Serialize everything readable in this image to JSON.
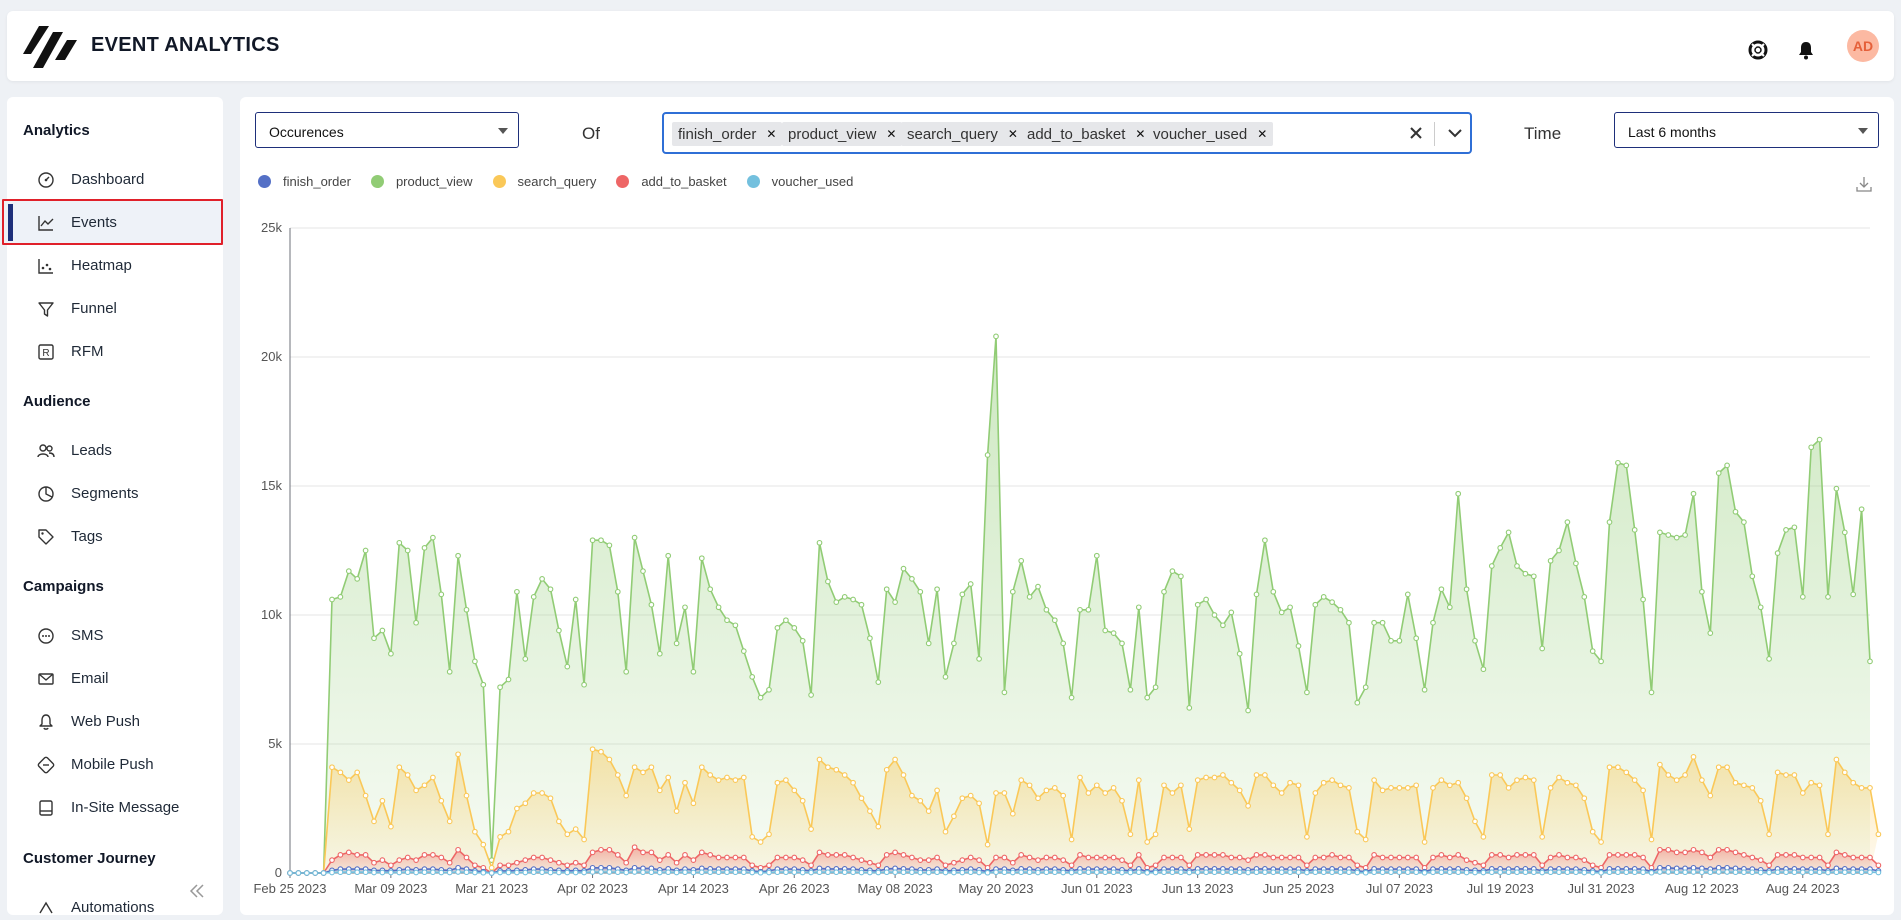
{
  "header": {
    "title": "EVENT ANALYTICS",
    "avatar_initials": "AD",
    "icons": [
      "support-icon",
      "bell-icon"
    ]
  },
  "sidebar": {
    "sections": [
      {
        "title": "Analytics",
        "items": [
          {
            "label": "Dashboard",
            "icon": "gauge-icon"
          },
          {
            "label": "Events",
            "icon": "line-chart-icon",
            "active": true
          },
          {
            "label": "Heatmap",
            "icon": "heatmap-icon"
          },
          {
            "label": "Funnel",
            "icon": "funnel-icon"
          },
          {
            "label": "RFM",
            "icon": "rfm-icon"
          }
        ]
      },
      {
        "title": "Audience",
        "items": [
          {
            "label": "Leads",
            "icon": "users-icon"
          },
          {
            "label": "Segments",
            "icon": "pie-icon"
          },
          {
            "label": "Tags",
            "icon": "tag-icon"
          }
        ]
      },
      {
        "title": "Campaigns",
        "items": [
          {
            "label": "SMS",
            "icon": "chat-icon"
          },
          {
            "label": "Email",
            "icon": "mail-icon"
          },
          {
            "label": "Web Push",
            "icon": "bell-icon"
          },
          {
            "label": "Mobile Push",
            "icon": "mobile-push-icon"
          },
          {
            "label": "In-Site Message",
            "icon": "message-box-icon"
          }
        ]
      },
      {
        "title": "Customer Journey",
        "items": [
          {
            "label": "Automations",
            "icon": "automation-icon"
          }
        ]
      }
    ]
  },
  "filters": {
    "metric": "Occurences",
    "of_label": "Of",
    "events": [
      "finish_order",
      "product_view",
      "search_query",
      "add_to_basket",
      "voucher_used"
    ],
    "time_label": "Time",
    "time_range": "Last 6 months"
  },
  "colors": {
    "finish_order": "#5470c6",
    "product_view": "#91cc75",
    "search_query": "#fac858",
    "add_to_basket": "#ee6666",
    "voucher_used": "#73c0de",
    "accent": "#1e2f7a",
    "highlight": "#e0202a"
  },
  "chart_data": {
    "type": "area",
    "x_start": "Feb 25 2023",
    "x_tick_labels": [
      "Feb 25 2023",
      "Mar 09 2023",
      "Mar 21 2023",
      "Apr 02 2023",
      "Apr 14 2023",
      "Apr 26 2023",
      "May 08 2023",
      "May 20 2023",
      "Jun 01 2023",
      "Jun 13 2023",
      "Jun 25 2023",
      "Jul 07 2023",
      "Jul 19 2023",
      "Jul 31 2023",
      "Aug 12 2023",
      "Aug 24 2023"
    ],
    "y_tick_labels": [
      "0",
      "5k",
      "10k",
      "15k",
      "20k",
      "25k"
    ],
    "ylim": [
      0,
      25000
    ],
    "legend_position": "top-left",
    "grid": true,
    "series": [
      {
        "name": "product_view",
        "values": [
          0,
          0,
          0,
          0,
          0,
          10600,
          10700,
          11700,
          11400,
          12500,
          9100,
          9400,
          8500,
          12800,
          12500,
          9700,
          12600,
          13000,
          10800,
          7800,
          12300,
          10200,
          8200,
          7300,
          500,
          7200,
          7500,
          10900,
          8300,
          10700,
          11400,
          11000,
          9400,
          8000,
          10600,
          7300,
          12900,
          12900,
          12700,
          10900,
          7800,
          13000,
          11700,
          10400,
          8500,
          12300,
          8900,
          10300,
          7800,
          12200,
          11000,
          10300,
          9800,
          9600,
          8600,
          7600,
          6800,
          7100,
          9500,
          9800,
          9500,
          9000,
          6900,
          12800,
          11300,
          10500,
          10700,
          10600,
          10400,
          9100,
          7400,
          11000,
          10500,
          11800,
          11400,
          10900,
          8900,
          11000,
          7600,
          8900,
          10800,
          11200,
          8300,
          16200,
          20800,
          7000,
          10900,
          12100,
          10700,
          11100,
          10200,
          9800,
          8900,
          6800,
          10200,
          10200,
          12300,
          9400,
          9300,
          8900,
          7100,
          10300,
          6800,
          7200,
          10900,
          11700,
          11500,
          6400,
          10400,
          10600,
          10000,
          9600,
          10100,
          8500,
          6300,
          10800,
          12900,
          10900,
          10100,
          10300,
          8800,
          7000,
          10400,
          10700,
          10500,
          10200,
          9700,
          6600,
          7200,
          9700,
          9700,
          9000,
          9000,
          10800,
          9100,
          7100,
          9700,
          11000,
          10300,
          14700,
          11000,
          9000,
          7900,
          11900,
          12600,
          13200,
          11900,
          11600,
          11500,
          8700,
          12100,
          12500,
          13600,
          12000,
          10700,
          8600,
          8200,
          13600,
          15900,
          15800,
          13300,
          10600,
          7000,
          13200,
          13100,
          13000,
          13100,
          14700,
          10900,
          9300,
          15500,
          15800,
          14000,
          13600,
          11500,
          10300,
          8300,
          12400,
          13300,
          13400,
          10700,
          16500,
          16800,
          10700,
          14900,
          13200,
          10800,
          14100,
          8200
        ]
      },
      {
        "name": "search_query",
        "values": [
          0,
          0,
          0,
          0,
          0,
          4100,
          3900,
          3600,
          3900,
          3000,
          2000,
          2800,
          1800,
          4100,
          3800,
          3200,
          3400,
          3700,
          2800,
          2000,
          4600,
          3000,
          1600,
          1100,
          200,
          1400,
          1600,
          2500,
          2700,
          3100,
          3100,
          2900,
          2000,
          1500,
          1700,
          1300,
          4800,
          4700,
          4400,
          3800,
          3000,
          4100,
          3900,
          4100,
          3200,
          3700,
          2400,
          3500,
          2700,
          4100,
          3800,
          3600,
          3700,
          3600,
          3700,
          1400,
          1200,
          1500,
          3500,
          3600,
          3200,
          2800,
          1700,
          4400,
          4100,
          4000,
          3800,
          3500,
          2900,
          2400,
          1800,
          4000,
          4400,
          3800,
          3000,
          2800,
          2400,
          3200,
          1600,
          2200,
          2900,
          3000,
          2700,
          1100,
          3100,
          3100,
          2300,
          3600,
          3400,
          2900,
          3200,
          3300,
          3000,
          1300,
          3700,
          3100,
          3400,
          3100,
          3300,
          2800,
          1500,
          3600,
          1200,
          1500,
          3400,
          3100,
          3400,
          1700,
          3600,
          3700,
          3700,
          3800,
          3500,
          3200,
          2600,
          3800,
          3800,
          3400,
          3100,
          3500,
          3400,
          1400,
          3100,
          3500,
          3600,
          3400,
          3300,
          1600,
          1300,
          3600,
          3200,
          3300,
          3300,
          3300,
          3400,
          1200,
          3300,
          3600,
          3400,
          3500,
          2900,
          2000,
          1400,
          3800,
          3800,
          3300,
          3600,
          3700,
          3600,
          1400,
          3300,
          3700,
          3500,
          3400,
          2900,
          1600,
          1200,
          4100,
          4100,
          3900,
          3600,
          3200,
          1300,
          4200,
          3800,
          3600,
          3800,
          4500,
          3600,
          3000,
          4100,
          4100,
          3500,
          3400,
          3300,
          2800,
          1500,
          3900,
          3800,
          3800,
          3100,
          3500,
          3400,
          1500,
          4400,
          3900,
          3500,
          3300,
          3300,
          1500
        ]
      },
      {
        "name": "add_to_basket",
        "values": [
          0,
          0,
          0,
          0,
          0,
          500,
          700,
          800,
          700,
          700,
          400,
          500,
          300,
          500,
          600,
          500,
          700,
          700,
          600,
          400,
          900,
          600,
          300,
          200,
          0,
          300,
          300,
          400,
          500,
          600,
          600,
          500,
          400,
          300,
          400,
          300,
          800,
          900,
          900,
          700,
          400,
          1000,
          800,
          800,
          500,
          700,
          400,
          700,
          500,
          800,
          700,
          600,
          600,
          600,
          600,
          300,
          200,
          300,
          600,
          600,
          600,
          500,
          300,
          800,
          700,
          700,
          700,
          600,
          500,
          400,
          300,
          700,
          800,
          700,
          600,
          500,
          500,
          600,
          300,
          400,
          500,
          600,
          500,
          200,
          600,
          600,
          400,
          700,
          600,
          500,
          600,
          600,
          500,
          300,
          700,
          600,
          600,
          600,
          600,
          500,
          300,
          700,
          200,
          300,
          600,
          600,
          600,
          300,
          700,
          700,
          700,
          700,
          600,
          600,
          500,
          700,
          700,
          600,
          600,
          600,
          600,
          300,
          600,
          600,
          700,
          600,
          600,
          300,
          200,
          700,
          600,
          600,
          600,
          600,
          600,
          200,
          600,
          700,
          600,
          700,
          500,
          400,
          300,
          700,
          700,
          600,
          700,
          700,
          700,
          300,
          600,
          700,
          600,
          600,
          500,
          300,
          200,
          700,
          700,
          700,
          700,
          600,
          200,
          900,
          900,
          800,
          800,
          900,
          800,
          600,
          900,
          900,
          800,
          700,
          600,
          500,
          300,
          700,
          700,
          700,
          600,
          600,
          600,
          300,
          800,
          700,
          600,
          600,
          600,
          300
        ]
      },
      {
        "name": "finish_order",
        "values": [
          0,
          0,
          0,
          0,
          0,
          100,
          150,
          150,
          150,
          150,
          100,
          100,
          80,
          120,
          150,
          120,
          150,
          150,
          120,
          100,
          200,
          150,
          80,
          50,
          0,
          80,
          80,
          100,
          120,
          150,
          150,
          120,
          100,
          80,
          100,
          80,
          200,
          200,
          200,
          150,
          100,
          200,
          180,
          180,
          120,
          160,
          100,
          150,
          120,
          180,
          160,
          150,
          150,
          150,
          150,
          80,
          50,
          80,
          150,
          150,
          150,
          120,
          80,
          180,
          160,
          160,
          160,
          150,
          120,
          100,
          80,
          160,
          180,
          160,
          150,
          120,
          120,
          150,
          80,
          100,
          120,
          150,
          120,
          50,
          150,
          150,
          100,
          160,
          150,
          120,
          150,
          150,
          120,
          80,
          160,
          150,
          150,
          150,
          150,
          120,
          80,
          160,
          50,
          80,
          150,
          150,
          150,
          80,
          160,
          160,
          160,
          160,
          150,
          150,
          120,
          160,
          160,
          150,
          150,
          150,
          150,
          80,
          150,
          150,
          160,
          150,
          150,
          80,
          50,
          160,
          150,
          150,
          150,
          150,
          150,
          50,
          150,
          160,
          150,
          160,
          120,
          100,
          80,
          160,
          160,
          150,
          160,
          160,
          160,
          80,
          150,
          160,
          150,
          150,
          120,
          80,
          50,
          160,
          160,
          160,
          160,
          150,
          50,
          200,
          200,
          180,
          180,
          200,
          180,
          150,
          200,
          200,
          180,
          160,
          150,
          120,
          80,
          160,
          160,
          160,
          150,
          150,
          150,
          80,
          180,
          160,
          150,
          150,
          150,
          80
        ]
      },
      {
        "name": "voucher_used",
        "values": [
          0,
          0,
          0,
          0,
          0,
          20,
          30,
          30,
          30,
          30,
          20,
          20,
          20,
          20,
          30,
          20,
          30,
          30,
          20,
          20,
          40,
          30,
          20,
          10,
          0,
          20,
          20,
          20,
          20,
          30,
          30,
          20,
          20,
          20,
          20,
          20,
          40,
          40,
          40,
          30,
          20,
          40,
          30,
          30,
          20,
          30,
          20,
          30,
          20,
          30,
          30,
          30,
          30,
          30,
          30,
          20,
          10,
          20,
          30,
          30,
          30,
          20,
          20,
          30,
          30,
          30,
          30,
          30,
          20,
          20,
          20,
          30,
          30,
          30,
          30,
          20,
          20,
          30,
          20,
          20,
          20,
          30,
          20,
          10,
          30,
          30,
          20,
          30,
          30,
          20,
          30,
          30,
          20,
          20,
          30,
          30,
          30,
          30,
          30,
          20,
          20,
          30,
          10,
          20,
          30,
          30,
          30,
          20,
          30,
          30,
          30,
          30,
          30,
          30,
          20,
          30,
          30,
          30,
          30,
          30,
          30,
          20,
          30,
          30,
          30,
          30,
          30,
          20,
          10,
          30,
          30,
          30,
          30,
          30,
          30,
          10,
          30,
          30,
          30,
          30,
          20,
          20,
          20,
          30,
          30,
          30,
          30,
          30,
          30,
          20,
          30,
          30,
          30,
          30,
          20,
          20,
          10,
          30,
          30,
          30,
          30,
          30,
          10,
          40,
          40,
          30,
          30,
          40,
          30,
          30,
          40,
          40,
          30,
          30,
          30,
          20,
          20,
          30,
          30,
          30,
          30,
          30,
          30,
          20,
          30,
          30,
          30,
          30,
          30,
          20
        ]
      }
    ]
  }
}
